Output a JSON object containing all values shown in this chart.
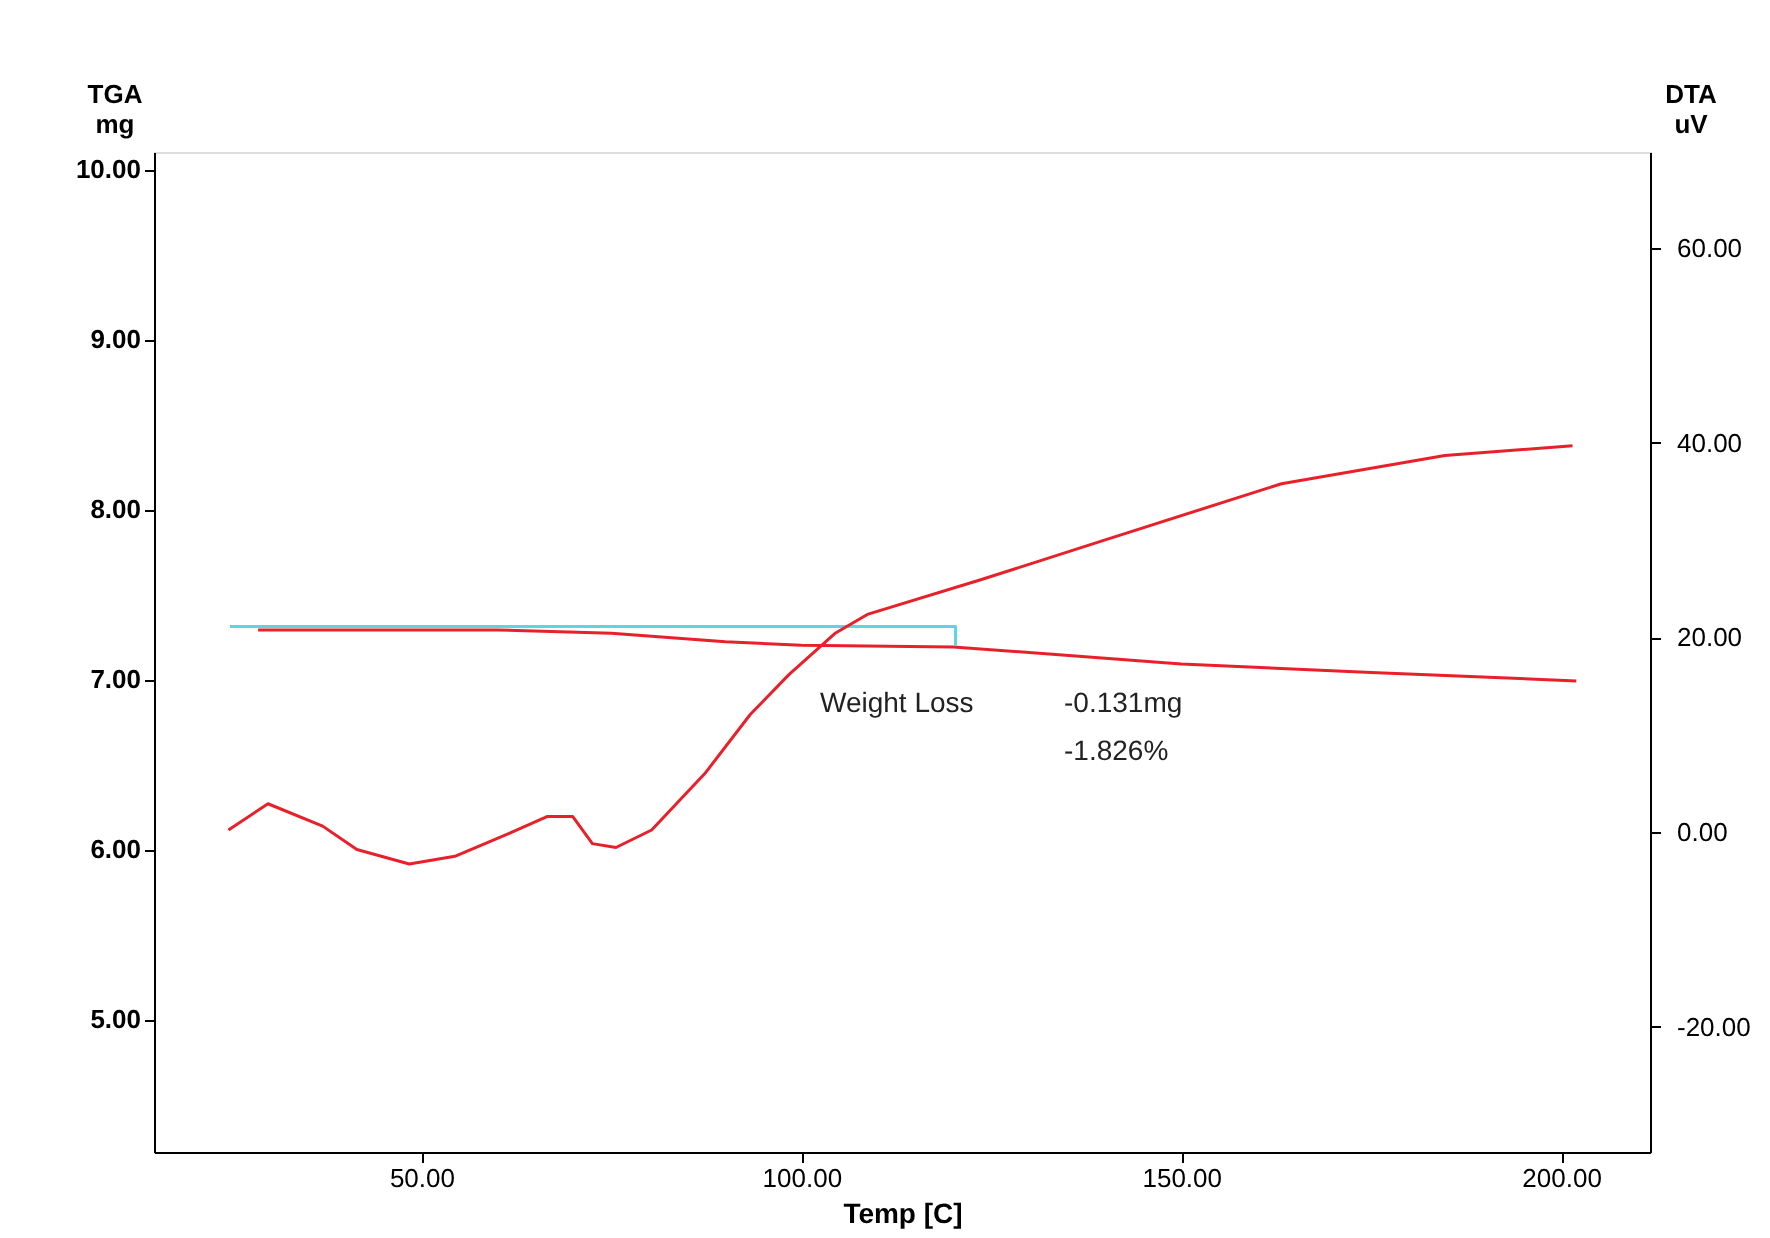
{
  "chart_data": {
    "type": "line",
    "xlabel": "Temp [C]",
    "ylabel": "TGA mg",
    "y2label": "DTA uV",
    "xlim": [
      14.8,
      211.7
    ],
    "xticks": [
      {
        "value": 50,
        "label": "50.00"
      },
      {
        "value": 100,
        "label": "100.00"
      },
      {
        "value": 150,
        "label": "150.00"
      },
      {
        "value": 200,
        "label": "200.00"
      }
    ],
    "ylim": [
      4.22,
      10.1
    ],
    "yticks": [
      {
        "value": 5,
        "label": "5.00"
      },
      {
        "value": 6,
        "label": "6.00"
      },
      {
        "value": 7,
        "label": "7.00"
      },
      {
        "value": 8,
        "label": "8.00"
      },
      {
        "value": 9,
        "label": "9.00"
      },
      {
        "value": 10,
        "label": "10.00"
      }
    ],
    "y2lim": [
      -32.9,
      69.9
    ],
    "y2ticks": [
      {
        "value": -20,
        "label": "-20.00"
      },
      {
        "value": 0,
        "label": "0.00"
      },
      {
        "value": 20,
        "label": "20.00"
      },
      {
        "value": 40,
        "label": "40.00"
      },
      {
        "value": 60,
        "label": "60.00"
      }
    ],
    "series": [
      {
        "color": "#5fd3e0",
        "x": [
          24.8,
          120.3,
          120.3
        ],
        "values": [
          7.31,
          7.31,
          7.2
        ]
      },
      {
        "color": "#e8202a",
        "x": [
          28.5,
          60,
          75,
          90,
          100,
          120,
          150,
          175,
          202
        ],
        "values": [
          7.29,
          7.29,
          7.27,
          7.22,
          7.2,
          7.19,
          7.09,
          7.04,
          6.99
        ]
      },
      {
        "color": "#e8202a",
        "axis": "y2",
        "x": [
          24.6,
          29.8,
          37.0,
          41.5,
          48.4,
          54.4,
          61.4,
          66.6,
          69.9,
          72.5,
          75.6,
          80.3,
          87.3,
          93.3,
          98.4,
          104.4,
          108.8,
          123.5,
          139.9,
          163.2,
          184.7,
          201.5
        ],
        "values": [
          0.2,
          2.9,
          0.6,
          -1.8,
          -3.3,
          -2.5,
          -0.2,
          1.6,
          1.6,
          -1.2,
          -1.6,
          0.2,
          6.0,
          12.1,
          16.2,
          20.4,
          22.4,
          25.9,
          30.0,
          35.8,
          38.7,
          39.7
        ]
      }
    ],
    "annotations": [
      "Weight Loss",
      "-0.131mg",
      "-1.826%"
    ],
    "grid": false,
    "marker": "none",
    "line_style": "solid"
  }
}
